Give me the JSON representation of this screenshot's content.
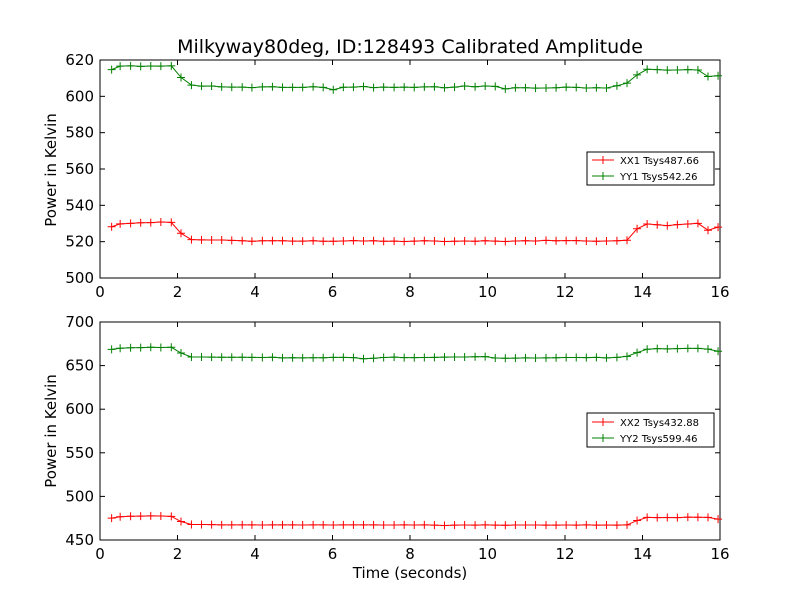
{
  "figure": {
    "title": "Milkyway80deg, ID:128493 Calibrated Amplitude",
    "xlabel": "Time (seconds)"
  },
  "colors": {
    "xx": "#ff0000",
    "yy": "#008000",
    "axis": "#000000"
  },
  "chart_data": [
    {
      "type": "line",
      "ylabel": "Power in Kelvin",
      "xlim": [
        0,
        16
      ],
      "ylim": [
        500,
        620
      ],
      "xticks": [
        "0",
        "2",
        "4",
        "6",
        "8",
        "10",
        "12",
        "14",
        "16"
      ],
      "yticks": [
        "500",
        "520",
        "540",
        "560",
        "580",
        "600",
        "620"
      ],
      "legend_position": "right",
      "grid": false,
      "x": [
        0.3,
        0.52,
        0.79,
        1.05,
        1.31,
        1.57,
        1.84,
        2.09,
        2.36,
        2.62,
        2.88,
        3.14,
        3.4,
        3.67,
        3.92,
        4.19,
        4.45,
        4.71,
        4.97,
        5.23,
        5.5,
        5.76,
        6.02,
        6.28,
        6.54,
        6.8,
        7.06,
        7.32,
        7.59,
        7.85,
        8.11,
        8.37,
        8.63,
        8.89,
        9.15,
        9.41,
        9.68,
        9.94,
        10.2,
        10.46,
        10.72,
        10.98,
        11.24,
        11.51,
        11.77,
        12.03,
        12.29,
        12.55,
        12.81,
        13.07,
        13.34,
        13.6,
        13.86,
        14.12,
        14.38,
        14.64,
        14.9,
        15.17,
        15.43,
        15.69,
        15.95
      ],
      "series": [
        {
          "name": "XX1 Tsys487.66",
          "color": "#ff0000",
          "values": [
            528.2,
            529.8,
            530.1,
            530.4,
            530.5,
            530.8,
            530.6,
            524.6,
            521.1,
            521.0,
            520.9,
            520.9,
            520.7,
            520.5,
            520.2,
            520.5,
            520.5,
            520.5,
            520.3,
            520.3,
            520.5,
            520.2,
            520.2,
            520.4,
            520.6,
            520.4,
            520.5,
            520.2,
            520.3,
            520.1,
            520.3,
            520.5,
            520.4,
            520.1,
            520.2,
            520.4,
            520.2,
            520.5,
            520.3,
            520.1,
            520.4,
            520.5,
            520.4,
            520.7,
            520.5,
            520.6,
            520.6,
            520.4,
            520.2,
            520.4,
            520.5,
            520.8,
            527.1,
            529.7,
            529.3,
            528.8,
            529.4,
            529.7,
            530.1,
            526.3,
            528.0
          ]
        },
        {
          "name": "YY1 Tsys542.26",
          "color": "#008000",
          "values": [
            614.7,
            616.6,
            616.8,
            616.5,
            616.7,
            616.6,
            616.8,
            610.4,
            606.2,
            605.6,
            605.7,
            605.2,
            605.1,
            605.1,
            604.8,
            605.2,
            605.3,
            604.9,
            604.9,
            604.9,
            605.3,
            604.9,
            603.6,
            605.0,
            605.1,
            605.4,
            604.8,
            605.1,
            604.9,
            605.1,
            604.9,
            605.2,
            605.3,
            604.7,
            605.1,
            605.7,
            605.3,
            605.7,
            605.5,
            604.1,
            604.7,
            604.7,
            604.5,
            604.6,
            604.7,
            605.1,
            604.9,
            604.6,
            604.7,
            604.6,
            605.8,
            607.3,
            611.8,
            614.9,
            614.7,
            614.4,
            614.5,
            614.7,
            614.5,
            610.9,
            611.3
          ]
        }
      ]
    },
    {
      "type": "line",
      "ylabel": "Power in Kelvin",
      "xlabel": "Time (seconds)",
      "xlim": [
        0,
        16
      ],
      "ylim": [
        450,
        700
      ],
      "xticks": [
        "0",
        "2",
        "4",
        "6",
        "8",
        "10",
        "12",
        "14",
        "16"
      ],
      "yticks": [
        "450",
        "500",
        "550",
        "600",
        "650",
        "700"
      ],
      "legend_position": "right",
      "grid": false,
      "x": [
        0.3,
        0.52,
        0.79,
        1.05,
        1.31,
        1.57,
        1.84,
        2.09,
        2.36,
        2.62,
        2.88,
        3.14,
        3.4,
        3.67,
        3.92,
        4.19,
        4.45,
        4.71,
        4.97,
        5.23,
        5.5,
        5.76,
        6.02,
        6.28,
        6.54,
        6.8,
        7.06,
        7.32,
        7.59,
        7.85,
        8.11,
        8.37,
        8.63,
        8.89,
        9.15,
        9.41,
        9.68,
        9.94,
        10.2,
        10.46,
        10.72,
        10.98,
        11.24,
        11.51,
        11.77,
        12.03,
        12.29,
        12.55,
        12.81,
        13.07,
        13.34,
        13.6,
        13.86,
        14.12,
        14.38,
        14.64,
        14.9,
        15.17,
        15.43,
        15.69,
        15.95
      ],
      "series": [
        {
          "name": "XX2 Tsys432.88",
          "color": "#ff0000",
          "values": [
            475.1,
            476.7,
            477.3,
            477.4,
            477.6,
            477.5,
            477.1,
            471.2,
            467.8,
            467.8,
            467.7,
            467.4,
            467.4,
            467.3,
            467.3,
            467.2,
            467.4,
            467.4,
            467.3,
            467.2,
            467.4,
            467.3,
            467.2,
            467.4,
            467.4,
            467.3,
            467.4,
            467.2,
            467.2,
            467.3,
            467.2,
            467.3,
            467.1,
            466.6,
            467.1,
            467.2,
            467.1,
            467.3,
            467.0,
            466.9,
            467.2,
            467.2,
            467.2,
            467.1,
            467.1,
            467.2,
            467.1,
            467.3,
            467.0,
            467.2,
            467.1,
            467.3,
            472.3,
            475.9,
            475.6,
            475.8,
            475.7,
            476.2,
            476.1,
            475.9,
            474.0
          ]
        },
        {
          "name": "YY2 Tsys599.46",
          "color": "#008000",
          "values": [
            668.6,
            669.9,
            670.4,
            670.6,
            671.1,
            670.8,
            671.0,
            664.4,
            659.9,
            659.9,
            659.7,
            659.6,
            659.6,
            659.6,
            659.5,
            659.3,
            659.6,
            658.9,
            659.0,
            658.8,
            659.0,
            659.0,
            659.4,
            659.5,
            659.2,
            657.9,
            658.5,
            659.3,
            659.7,
            659.2,
            659.1,
            659.3,
            659.5,
            659.7,
            659.9,
            659.9,
            660.1,
            660.3,
            658.7,
            658.4,
            658.6,
            658.8,
            658.7,
            658.9,
            659.0,
            659.3,
            659.3,
            659.2,
            659.5,
            658.9,
            659.4,
            660.6,
            664.9,
            668.8,
            669.5,
            669.2,
            669.4,
            669.7,
            669.8,
            668.9,
            666.5
          ]
        }
      ]
    }
  ]
}
